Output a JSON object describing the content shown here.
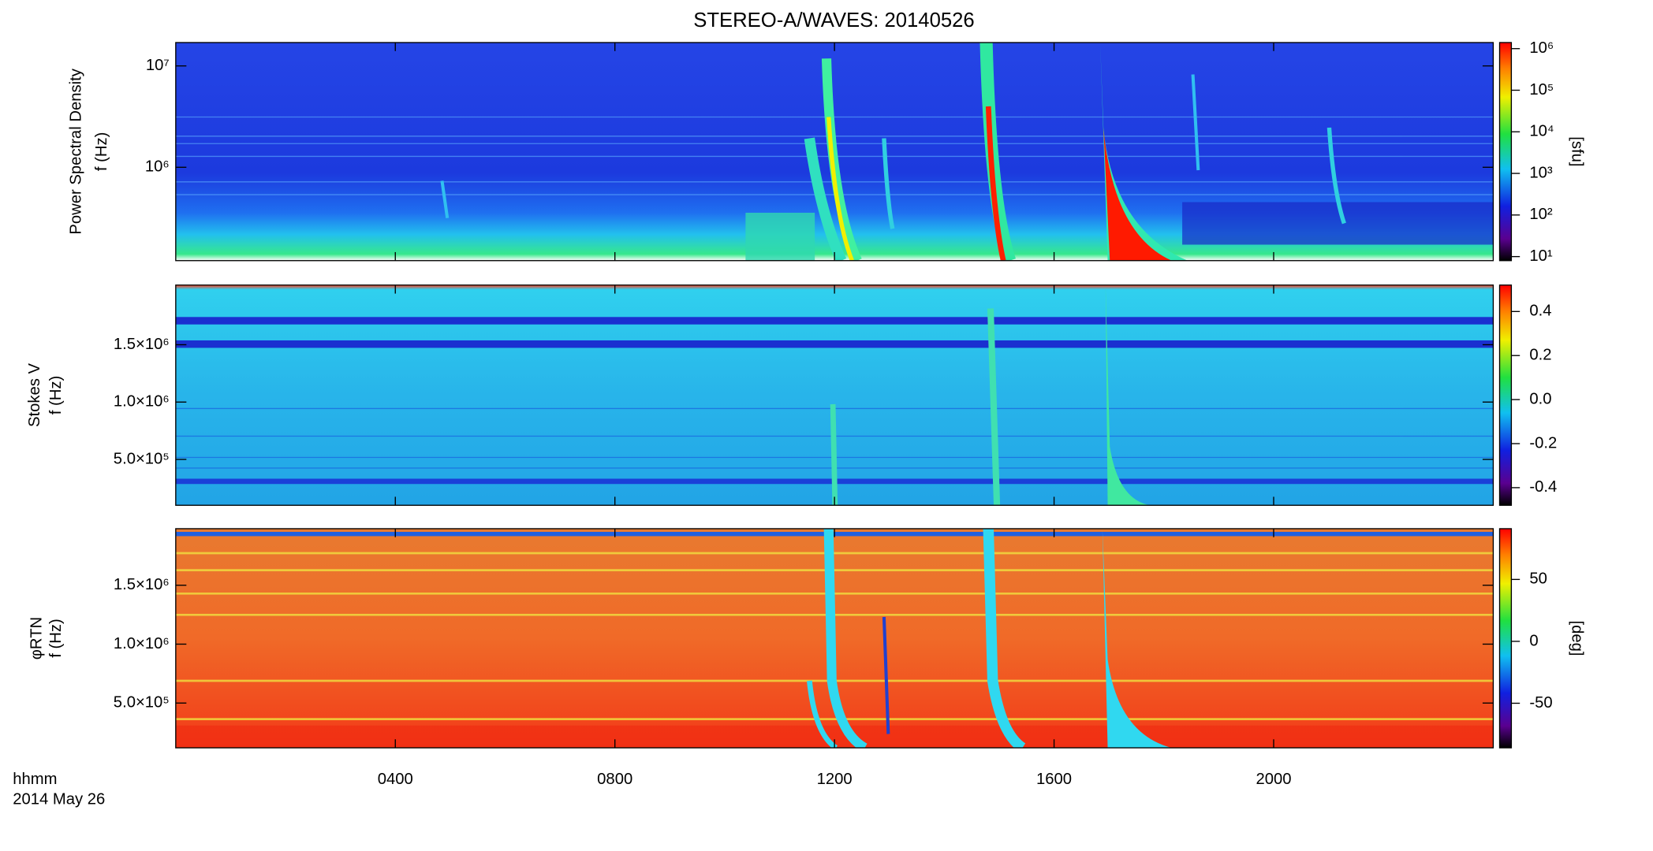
{
  "x_axis": {
    "xlim": [
      0,
      24
    ],
    "xticks": [
      {
        "value": 4,
        "label": "0400"
      },
      {
        "value": 8,
        "label": "0800"
      },
      {
        "value": 12,
        "label": "1200"
      },
      {
        "value": 16,
        "label": "1600"
      },
      {
        "value": 20,
        "label": "2000"
      }
    ],
    "labels": [
      "hhmm",
      "2014 May 26"
    ]
  },
  "chart_data": [
    {
      "type": "heatmap",
      "title": "STEREO-A/WAVES: 20140526",
      "ylabel": [
        "Power Spectral Density",
        "f (Hz)"
      ],
      "ylog": true,
      "ylim": [
        120000,
        17000000
      ],
      "yticks": [
        {
          "value": 1000000,
          "label": "10⁶"
        },
        {
          "value": 10000000,
          "label": "10⁷"
        }
      ],
      "zlog": true,
      "zlim": [
        8,
        1400000
      ],
      "zticks": [
        {
          "value": 10,
          "label": "10¹"
        },
        {
          "value": 100,
          "label": "10²"
        },
        {
          "value": 1000,
          "label": "10³"
        },
        {
          "value": 10000,
          "label": "10⁴"
        },
        {
          "value": 100000,
          "label": "10⁵"
        },
        {
          "value": 1000000,
          "label": "10⁶"
        }
      ],
      "zlabel": "[sfu]"
    },
    {
      "type": "heatmap",
      "ylabel": [
        "Stokes V",
        "f (Hz)"
      ],
      "ylog": false,
      "ylim": [
        100000,
        2020000
      ],
      "yticks": [
        {
          "value": 500000,
          "label": "5.0×10⁵"
        },
        {
          "value": 1000000,
          "label": "1.0×10⁶"
        },
        {
          "value": 1500000,
          "label": "1.5×10⁶"
        }
      ],
      "zlog": false,
      "zlim": [
        -0.48,
        0.52
      ],
      "zticks": [
        -0.4,
        -0.2,
        {
          "value": 0,
          "label": "0.0"
        },
        0.2,
        0.4
      ]
    },
    {
      "type": "heatmap",
      "ylabel": [
        "φRTN",
        "f (Hz)"
      ],
      "ylog": false,
      "ylim": [
        120000,
        1980000
      ],
      "yticks": [
        {
          "value": 500000,
          "label": "5.0×10⁵"
        },
        {
          "value": 1000000,
          "label": "1.0×10⁶"
        },
        {
          "value": 1500000,
          "label": "1.5×10⁶"
        }
      ],
      "zlog": false,
      "zlim": [
        -86,
        91
      ],
      "zticks": [
        -50,
        0,
        50
      ],
      "zlabel": "[deg]"
    }
  ]
}
